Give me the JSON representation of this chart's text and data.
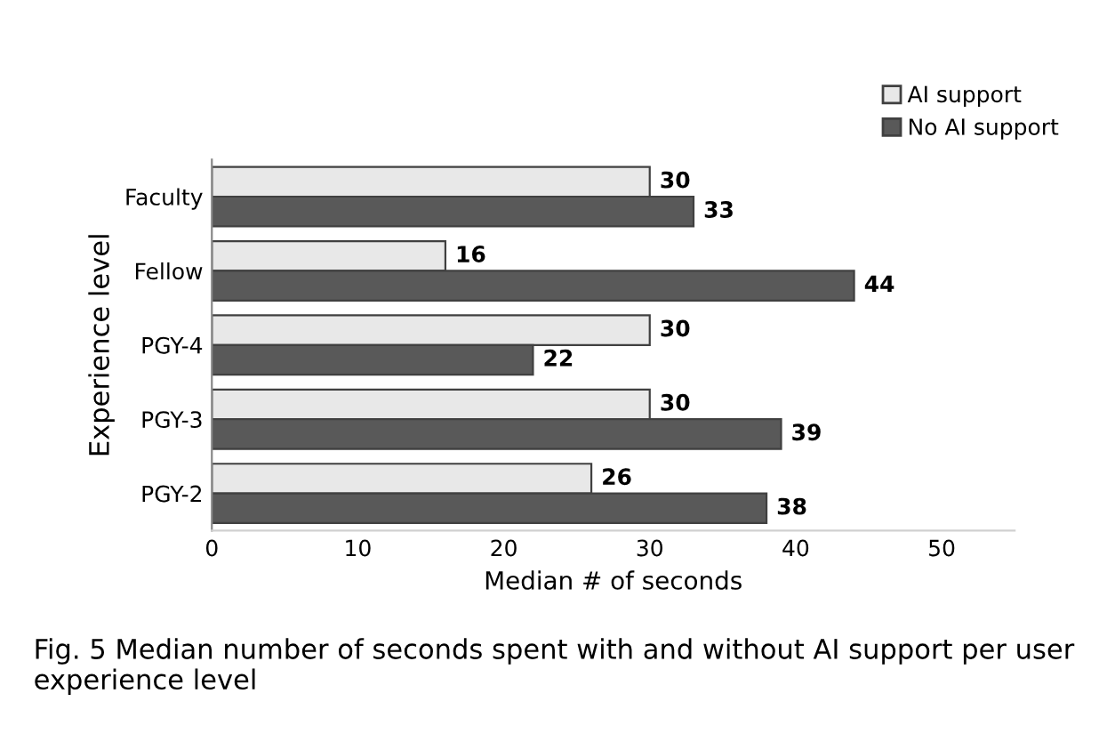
{
  "chart_data": {
    "type": "bar",
    "orientation": "horizontal",
    "xlabel": "Median # of seconds",
    "ylabel": "Experience level",
    "categories": [
      "Faculty",
      "Fellow",
      "PGY-4",
      "PGY-3",
      "PGY-2"
    ],
    "series": [
      {
        "name": "AI support",
        "color": "#e8e8e8",
        "values": [
          30,
          16,
          30,
          30,
          26
        ]
      },
      {
        "name": "No AI support",
        "color": "#595959",
        "values": [
          33,
          44,
          22,
          39,
          38
        ]
      }
    ],
    "xlim": [
      0,
      55
    ],
    "xticks": [
      0,
      10,
      20,
      30,
      40,
      50
    ],
    "grid": false,
    "legend": "top right",
    "data_labels": true,
    "annotations": [
      "Fig. 5 Median number of seconds spent with and without AI support per user experience level"
    ]
  }
}
